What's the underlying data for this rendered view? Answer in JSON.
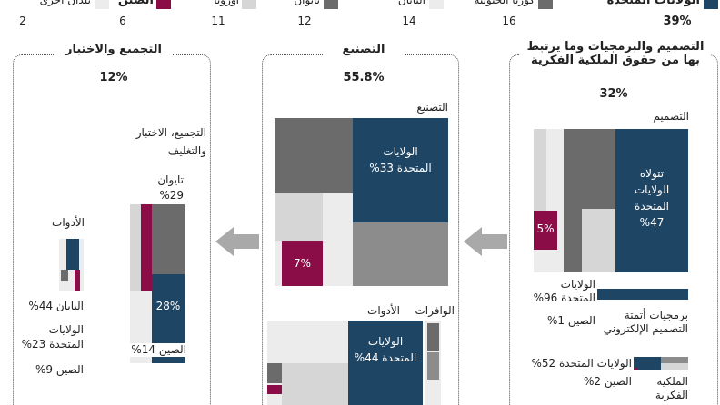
{
  "legend": [
    {
      "label": "الولايات المتحدة",
      "value": "39%"
    },
    {
      "label": "كوريا الجنوبية",
      "value": "16"
    },
    {
      "label": "اليابان",
      "value": "14"
    },
    {
      "label": "تايوان",
      "value": "12"
    },
    {
      "label": "أوروبا",
      "value": "11"
    },
    {
      "label": "الصين",
      "value": "6"
    },
    {
      "label": "بلدان أخرى",
      "value": "2"
    }
  ],
  "panels": {
    "design": {
      "title": "التصميم والبرمجيات وما يرتبط بها من حقوق الملكية الفكرية",
      "share": "32%",
      "section": "التصميم",
      "us_note": "تتولاه الولايات المتحدة 47%",
      "china": "5%",
      "eda_us": "الولايات المتحدة 96%",
      "eda_china": "الصين 1%",
      "eda_label": "برمجيات أتمتة التصميم الإلكتروني",
      "ip_us": "الولايات المتحدة 52%",
      "ip_china": "الصين 2%",
      "ip_label": "الملكية الفكرية"
    },
    "manufacturing": {
      "title": "التصنيع",
      "share": "55.8%",
      "section": "التصنيع",
      "us_note": "الولايات المتحدة 33%",
      "china": "7%",
      "wafers": "الوافرات",
      "tools": "الأدوات",
      "tools_us": "الولايات المتحدة 44%"
    },
    "assembly": {
      "title": "التجميع والاختبار",
      "share": "12%",
      "section": "التجميع، الاختبار والتغليف",
      "taiwan": "تايوان 29%",
      "us": "28%",
      "china": "الصين 14%",
      "tools": "الأدوات",
      "tools_japan": "اليابان 44%",
      "tools_us": "الولايات المتحدة 23%",
      "tools_china": "الصين 9%"
    }
  }
}
